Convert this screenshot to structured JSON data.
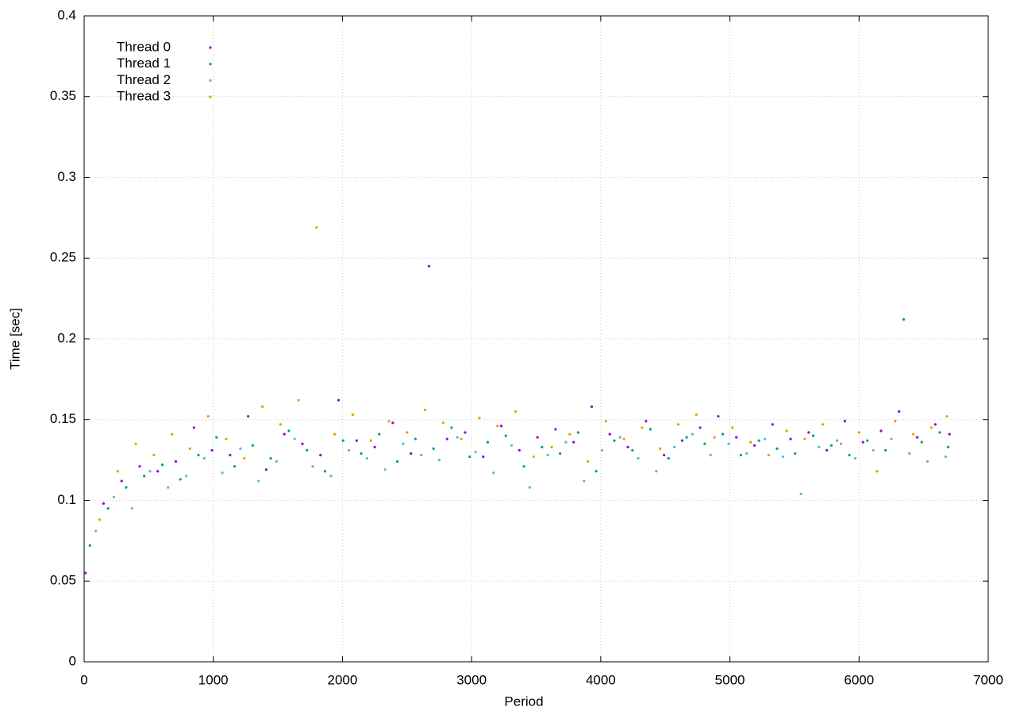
{
  "chart_data": {
    "type": "scatter",
    "x_label": "Period",
    "y_label": "Time [sec]",
    "xlim": [
      0,
      7000
    ],
    "xticks": [
      0,
      1000,
      2000,
      3000,
      4000,
      5000,
      6000,
      7000
    ],
    "ylim": [
      0,
      0.4
    ],
    "yticks": [
      0,
      0.05,
      0.1,
      0.15,
      0.2,
      0.25,
      0.3,
      0.35,
      0.4
    ],
    "grid": true,
    "legend": "top-left",
    "series": [
      {
        "name": "Thread 0",
        "color": "#9400d3",
        "x": [
          10,
          150,
          290,
          430,
          570,
          710,
          850,
          990,
          1130,
          1270,
          1410,
          1550,
          1690,
          1830,
          1970,
          2110,
          2250,
          2390,
          2530,
          2670,
          2810,
          2950,
          3090,
          3230,
          3370,
          3510,
          3650,
          3790,
          3930,
          4070,
          4210,
          4350,
          4490,
          4630,
          4770,
          4910,
          5050,
          5190,
          5330,
          5470,
          5610,
          5750,
          5890,
          6030,
          6170,
          6310,
          6450,
          6590,
          6700
        ],
        "values": [
          0.055,
          0.098,
          0.112,
          0.121,
          0.118,
          0.124,
          0.145,
          0.131,
          0.128,
          0.152,
          0.119,
          0.141,
          0.135,
          0.128,
          0.162,
          0.137,
          0.133,
          0.148,
          0.129,
          0.245,
          0.138,
          0.142,
          0.127,
          0.146,
          0.131,
          0.139,
          0.144,
          0.136,
          0.158,
          0.141,
          0.133,
          0.149,
          0.128,
          0.137,
          0.145,
          0.152,
          0.139,
          0.134,
          0.147,
          0.138,
          0.142,
          0.131,
          0.149,
          0.136,
          0.143,
          0.155,
          0.139,
          0.147,
          0.141
        ]
      },
      {
        "name": "Thread 1",
        "color": "#009e73",
        "x": [
          45,
          185,
          325,
          465,
          605,
          745,
          885,
          1025,
          1165,
          1305,
          1445,
          1585,
          1725,
          1865,
          2005,
          2145,
          2285,
          2425,
          2565,
          2705,
          2845,
          2985,
          3125,
          3265,
          3405,
          3545,
          3685,
          3825,
          3965,
          4105,
          4245,
          4385,
          4525,
          4665,
          4805,
          4945,
          5085,
          5225,
          5365,
          5505,
          5645,
          5785,
          5925,
          6065,
          6205,
          6345,
          6485,
          6625,
          6690
        ],
        "values": [
          0.072,
          0.095,
          0.108,
          0.115,
          0.122,
          0.113,
          0.128,
          0.139,
          0.121,
          0.134,
          0.126,
          0.143,
          0.131,
          0.118,
          0.137,
          0.129,
          0.141,
          0.124,
          0.138,
          0.132,
          0.145,
          0.127,
          0.136,
          0.14,
          0.121,
          0.133,
          0.129,
          0.142,
          0.118,
          0.137,
          0.131,
          0.144,
          0.126,
          0.139,
          0.135,
          0.141,
          0.128,
          0.137,
          0.132,
          0.129,
          0.14,
          0.134,
          0.128,
          0.137,
          0.131,
          0.212,
          0.136,
          0.142,
          0.133
        ]
      },
      {
        "name": "Thread 2",
        "color": "#56b4e9",
        "x": [
          90,
          230,
          370,
          510,
          650,
          790,
          930,
          1070,
          1210,
          1350,
          1490,
          1630,
          1770,
          1910,
          2050,
          2190,
          2330,
          2470,
          2610,
          2750,
          2890,
          3030,
          3170,
          3310,
          3450,
          3590,
          3730,
          3870,
          4010,
          4150,
          4290,
          4430,
          4570,
          4710,
          4850,
          4990,
          5130,
          5270,
          5410,
          5550,
          5690,
          5830,
          5970,
          6110,
          6250,
          6390,
          6530,
          6670
        ],
        "values": [
          0.081,
          0.102,
          0.095,
          0.118,
          0.108,
          0.115,
          0.126,
          0.117,
          0.132,
          0.112,
          0.124,
          0.138,
          0.121,
          0.115,
          0.131,
          0.126,
          0.119,
          0.135,
          0.128,
          0.125,
          0.139,
          0.13,
          0.117,
          0.134,
          0.108,
          0.128,
          0.136,
          0.112,
          0.131,
          0.139,
          0.126,
          0.118,
          0.133,
          0.141,
          0.128,
          0.135,
          0.129,
          0.138,
          0.127,
          0.104,
          0.133,
          0.137,
          0.126,
          0.131,
          0.138,
          0.129,
          0.124,
          0.127
        ]
      },
      {
        "name": "Thread 3",
        "color": "#e69f00",
        "x": [
          120,
          260,
          400,
          540,
          680,
          820,
          960,
          1100,
          1240,
          1380,
          1520,
          1660,
          1800,
          1940,
          2080,
          2220,
          2360,
          2500,
          2640,
          2780,
          2920,
          3060,
          3200,
          3340,
          3480,
          3620,
          3760,
          3900,
          4040,
          4180,
          4320,
          4460,
          4600,
          4740,
          4880,
          5020,
          5160,
          5300,
          5440,
          5580,
          5720,
          5860,
          6000,
          6140,
          6280,
          6420,
          6560,
          6680
        ],
        "values": [
          0.088,
          0.118,
          0.135,
          0.128,
          0.141,
          0.132,
          0.152,
          0.138,
          0.126,
          0.158,
          0.147,
          0.162,
          0.269,
          0.141,
          0.153,
          0.137,
          0.149,
          0.142,
          0.156,
          0.148,
          0.138,
          0.151,
          0.146,
          0.155,
          0.127,
          0.133,
          0.141,
          0.124,
          0.149,
          0.138,
          0.145,
          0.132,
          0.147,
          0.153,
          0.139,
          0.145,
          0.136,
          0.128,
          0.143,
          0.138,
          0.147,
          0.135,
          0.142,
          0.118,
          0.149,
          0.141,
          0.145,
          0.152
        ]
      }
    ]
  }
}
